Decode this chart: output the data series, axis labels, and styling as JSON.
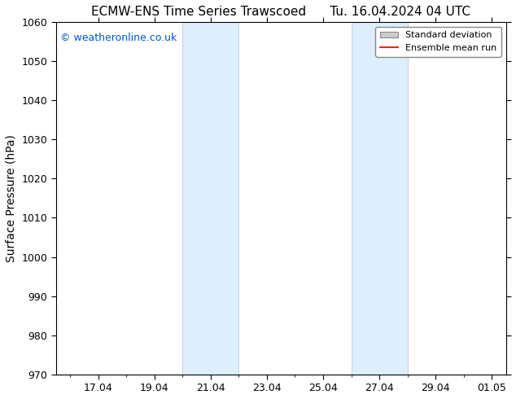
{
  "title_left": "ECMW-ENS Time Series Trawscoed",
  "title_right": "Tu. 16.04.2024 04 UTC",
  "ylabel": "Surface Pressure (hPa)",
  "ylim": [
    970,
    1060
  ],
  "yticks": [
    970,
    980,
    990,
    1000,
    1010,
    1020,
    1030,
    1040,
    1050,
    1060
  ],
  "xtick_labels": [
    "17.04",
    "19.04",
    "21.04",
    "23.04",
    "25.04",
    "27.04",
    "29.04",
    "01.05"
  ],
  "xtick_days_from_start": [
    0,
    2,
    4,
    6,
    8,
    10,
    12,
    15
  ],
  "xstart_day": 16,
  "xend_day": 15.5,
  "shaded_bands": [
    {
      "x_start": 4,
      "x_end": 6
    },
    {
      "x_start": 10,
      "x_end": 12
    }
  ],
  "shaded_color": "#ddeeff",
  "shaded_edge_color": "#b0c8e0",
  "background_color": "#ffffff",
  "plot_bg_color": "#ffffff",
  "watermark_text": "© weatheronline.co.uk",
  "watermark_color": "#0055cc",
  "legend_std_color": "#cccccc",
  "legend_mean_color": "#ff2200",
  "title_fontsize": 11,
  "tick_fontsize": 9,
  "ylabel_fontsize": 10,
  "watermark_fontsize": 9,
  "spine_color": "#000000"
}
